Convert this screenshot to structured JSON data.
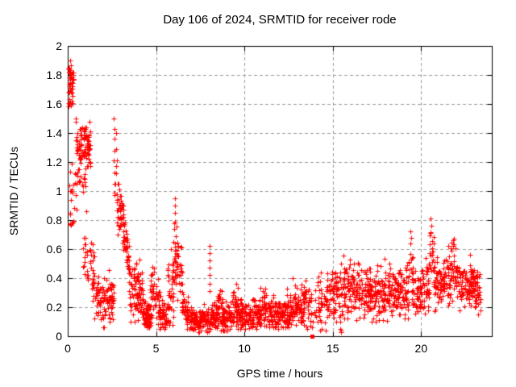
{
  "header": {
    "title": "Day 106 of 2024, SRMTID for receiver rode"
  },
  "chart_data": {
    "type": "scatter",
    "title": "Day 106 of 2024, SRMTID for receiver rode",
    "xlabel": "GPS time / hours",
    "ylabel": "SRMTID / TECUs",
    "xlim": [
      0,
      24
    ],
    "ylim": [
      0,
      2
    ],
    "xticks": {
      "values": [
        0,
        5,
        10,
        15,
        20
      ],
      "labels": [
        "0",
        "5",
        "10",
        "15",
        "20"
      ]
    },
    "yticks": {
      "values": [
        0,
        0.2,
        0.4,
        0.6,
        0.8,
        1,
        1.2,
        1.4,
        1.6,
        1.8,
        2
      ],
      "labels": [
        "0",
        "0.2",
        "0.4",
        "0.6",
        "0.8",
        "1",
        "1.2",
        "1.4",
        "1.6",
        "1.8",
        "2"
      ]
    },
    "grid": true,
    "legend": "none",
    "marker": "plus",
    "marker_color": "#ff0000",
    "grid_color": "#9e9e9e",
    "border_color": "#000000",
    "seed": 106,
    "series": [
      {
        "name": "SRMTID",
        "note_segments": "piecewise bands [t0,t1,v0,v1,sd,n,vmin,vmax] summarizing ~2500 plus-markers read from the plot",
        "segments": [
          [
            0.03,
            0.32,
            1.79,
            1.78,
            0.05,
            40,
            1.7,
            1.9
          ],
          [
            0.03,
            0.3,
            1.64,
            1.64,
            0.035,
            14,
            1.57,
            1.71
          ],
          [
            0.05,
            0.5,
            1.05,
            1.0,
            0.09,
            16,
            0.83,
            1.2
          ],
          [
            0.06,
            0.4,
            0.77,
            0.76,
            0.04,
            6,
            0.7,
            0.84
          ],
          [
            0.45,
            1.3,
            1.34,
            1.3,
            0.07,
            95,
            1.17,
            1.5
          ],
          [
            0.5,
            1.05,
            1.12,
            1.06,
            0.06,
            18,
            0.95,
            1.22
          ],
          [
            0.85,
            1.5,
            0.62,
            0.45,
            0.1,
            35,
            0.28,
            0.85
          ],
          [
            1.4,
            2.1,
            0.36,
            0.17,
            0.08,
            55,
            0.06,
            0.55
          ],
          [
            2.0,
            2.6,
            0.26,
            0.28,
            0.08,
            55,
            0.1,
            0.48
          ],
          [
            2.6,
            2.78,
            1.2,
            1.2,
            0.18,
            8,
            0.92,
            1.52
          ],
          [
            2.78,
            3.15,
            0.88,
            0.84,
            0.08,
            40,
            0.68,
            1.05
          ],
          [
            3.1,
            3.5,
            0.72,
            0.5,
            0.08,
            45,
            0.35,
            0.95
          ],
          [
            3.45,
            4.25,
            0.4,
            0.26,
            0.1,
            95,
            0.1,
            0.62
          ],
          [
            4.25,
            4.75,
            0.14,
            0.13,
            0.05,
            65,
            0.04,
            0.3
          ],
          [
            4.6,
            5.2,
            0.27,
            0.24,
            0.1,
            50,
            0.07,
            0.48
          ],
          [
            5.15,
            5.65,
            0.15,
            0.16,
            0.06,
            45,
            0.05,
            0.32
          ],
          [
            5.6,
            6.0,
            0.27,
            0.36,
            0.12,
            45,
            0.08,
            0.6
          ],
          [
            5.98,
            6.5,
            0.5,
            0.4,
            0.12,
            55,
            0.18,
            0.78
          ],
          [
            6.45,
            7.05,
            0.2,
            0.12,
            0.06,
            60,
            0.05,
            0.38
          ],
          [
            7.0,
            8.0,
            0.11,
            0.11,
            0.04,
            115,
            0.03,
            0.24
          ],
          [
            8.05,
            9.3,
            0.13,
            0.13,
            0.05,
            130,
            0.04,
            0.28
          ],
          [
            8.5,
            8.8,
            0.22,
            0.22,
            0.06,
            16,
            0.1,
            0.34
          ],
          [
            9.3,
            9.65,
            0.2,
            0.17,
            0.07,
            35,
            0.07,
            0.36
          ],
          [
            9.6,
            10.85,
            0.14,
            0.15,
            0.05,
            125,
            0.05,
            0.3
          ],
          [
            10.8,
            11.4,
            0.19,
            0.19,
            0.07,
            55,
            0.07,
            0.37
          ],
          [
            11.35,
            12.6,
            0.15,
            0.17,
            0.055,
            130,
            0.06,
            0.33
          ],
          [
            12.6,
            13.4,
            0.2,
            0.22,
            0.07,
            80,
            0.08,
            0.4
          ],
          [
            13.4,
            13.8,
            0.22,
            0.19,
            0.09,
            28,
            0.05,
            0.42
          ],
          [
            13.95,
            14.6,
            0.16,
            0.18,
            0.1,
            32,
            0.04,
            0.44
          ],
          [
            14.6,
            15.3,
            0.26,
            0.3,
            0.08,
            70,
            0.1,
            0.5
          ],
          [
            15.3,
            15.55,
            0.27,
            0.27,
            0.13,
            22,
            0.04,
            0.55
          ],
          [
            15.55,
            16.3,
            0.33,
            0.33,
            0.1,
            70,
            0.12,
            0.62
          ],
          [
            16.3,
            17.15,
            0.3,
            0.32,
            0.09,
            85,
            0.11,
            0.56
          ],
          [
            17.1,
            18.25,
            0.3,
            0.29,
            0.09,
            115,
            0.1,
            0.55
          ],
          [
            18.2,
            19.3,
            0.3,
            0.33,
            0.09,
            110,
            0.12,
            0.57
          ],
          [
            19.3,
            19.55,
            0.47,
            0.5,
            0.12,
            16,
            0.26,
            0.72
          ],
          [
            19.5,
            20.45,
            0.3,
            0.33,
            0.09,
            85,
            0.12,
            0.56
          ],
          [
            20.4,
            20.75,
            0.5,
            0.48,
            0.14,
            24,
            0.24,
            0.85
          ],
          [
            20.7,
            21.6,
            0.38,
            0.4,
            0.09,
            90,
            0.17,
            0.62
          ],
          [
            21.6,
            22.0,
            0.44,
            0.42,
            0.1,
            40,
            0.2,
            0.67
          ],
          [
            22.0,
            23.0,
            0.36,
            0.34,
            0.09,
            100,
            0.14,
            0.58
          ],
          [
            23.0,
            23.35,
            0.33,
            0.3,
            0.08,
            38,
            0.15,
            0.5
          ]
        ],
        "feature_points": [
          [
            2.62,
            1.5
          ],
          [
            2.64,
            1.43
          ],
          [
            2.63,
            1.36
          ],
          [
            2.66,
            1.28
          ],
          [
            2.62,
            1.21
          ],
          [
            2.65,
            1.13
          ],
          [
            2.63,
            1.05
          ],
          [
            2.66,
            0.97
          ],
          [
            6.05,
            0.95
          ],
          [
            6.07,
            0.9
          ],
          [
            6.05,
            0.85
          ],
          [
            6.08,
            0.79
          ],
          [
            6.04,
            0.74
          ],
          [
            6.1,
            0.69
          ],
          [
            8.02,
            0.62
          ],
          [
            8.04,
            0.57
          ],
          [
            8.03,
            0.52
          ],
          [
            8.02,
            0.47
          ],
          [
            8.05,
            0.42
          ],
          [
            8.03,
            0.36
          ],
          [
            8.04,
            0.31
          ],
          [
            13.83,
            0.06
          ],
          [
            13.85,
            0.1
          ],
          [
            14.32,
            0.44
          ],
          [
            14.3,
            0.38
          ],
          [
            14.34,
            0.32
          ],
          [
            14.31,
            0.26
          ],
          [
            14.33,
            0.1
          ],
          [
            14.35,
            0.05
          ],
          [
            15.42,
            0.05
          ],
          [
            15.46,
            0.03
          ],
          [
            15.4,
            0.1
          ],
          [
            19.4,
            0.72
          ],
          [
            19.43,
            0.68
          ],
          [
            19.39,
            0.64
          ],
          [
            20.55,
            0.81
          ],
          [
            20.58,
            0.76
          ],
          [
            20.54,
            0.71
          ],
          [
            21.8,
            0.66
          ],
          [
            21.83,
            0.62
          ],
          [
            1.05,
            0.86
          ],
          [
            0.12,
            0.85
          ],
          [
            0.15,
            0.78
          ],
          [
            7.55,
            0.04
          ],
          [
            11.9,
            0.05
          ]
        ],
        "filled_points": [
          [
            13.83,
            0.0
          ]
        ]
      }
    ]
  }
}
